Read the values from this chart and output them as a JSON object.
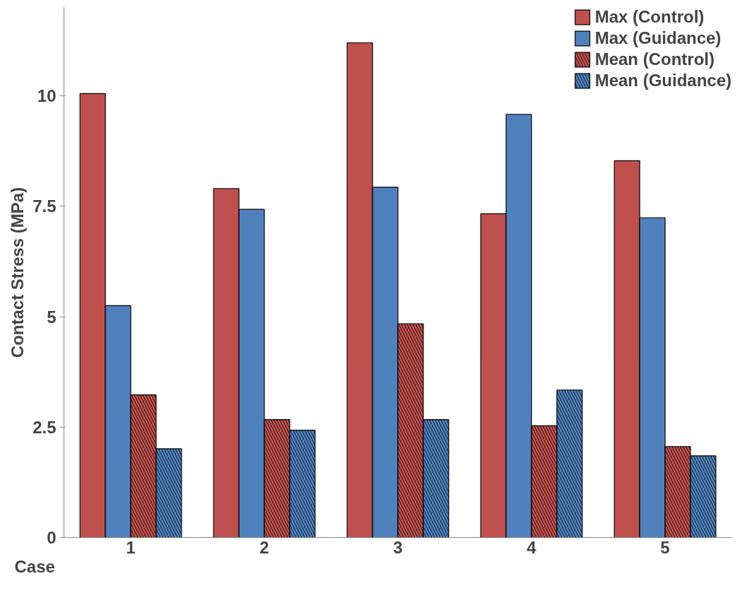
{
  "chart_data": {
    "type": "bar",
    "xlabel": "Case",
    "ylabel": "Contact Stress (MPa)",
    "categories": [
      "1",
      "2",
      "3",
      "4",
      "5"
    ],
    "series": [
      {
        "name": "Max (Control)",
        "color": "#c0504d",
        "values": [
          10.05,
          7.9,
          11.2,
          7.33,
          8.53
        ]
      },
      {
        "name": "Max (Guidance)",
        "color": "#4f81bd",
        "values": [
          5.25,
          7.43,
          7.93,
          9.58,
          7.24
        ]
      },
      {
        "name": "Mean (Control)",
        "color": "#c0504d",
        "values": [
          3.23,
          2.67,
          4.84,
          2.53,
          2.06
        ]
      },
      {
        "name": "Mean (Guidance)",
        "color": "#4f81bd",
        "values": [
          2.01,
          2.43,
          2.67,
          3.34,
          1.85
        ]
      }
    ],
    "ylim": [
      0,
      12
    ],
    "yticks": [
      0,
      {
        "value": 2.5,
        "label": "2.5"
      },
      5,
      {
        "value": 7.5,
        "label": "7.5"
      },
      10
    ],
    "grid": false,
    "legend": "top right"
  }
}
